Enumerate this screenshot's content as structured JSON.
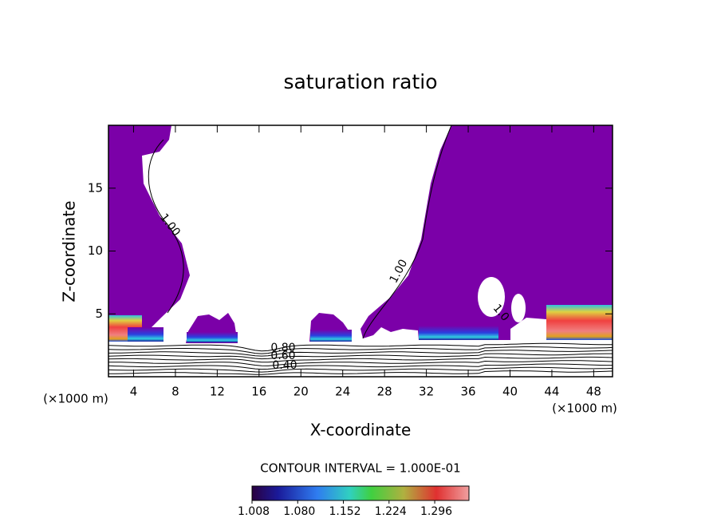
{
  "chart_data": {
    "type": "contour",
    "title": "saturation ratio",
    "x_label": "X-coordinate",
    "y_label": "Z-coordinate",
    "x_unit": "(×1000 m)",
    "xlim": [
      1.6,
      49.8
    ],
    "xticks": [
      4,
      8,
      12,
      16,
      20,
      24,
      28,
      32,
      36,
      40,
      44,
      48
    ],
    "ylim": [
      0,
      20
    ],
    "yticks": [
      5,
      10,
      15
    ],
    "fill_color": "#7b00a8",
    "contour_labels": [
      "1.00",
      "1.00",
      "1.0",
      "0.80",
      "0.60",
      "0.40"
    ],
    "contour_interval": "CONTOUR INTERVAL = 1.000E-01",
    "colorbar": {
      "range": [
        1.008,
        1.35
      ],
      "ticks": [
        1.008,
        {
          "value": 1.08,
          "label": "1.080"
        },
        1.152,
        1.224,
        1.296
      ]
    }
  }
}
